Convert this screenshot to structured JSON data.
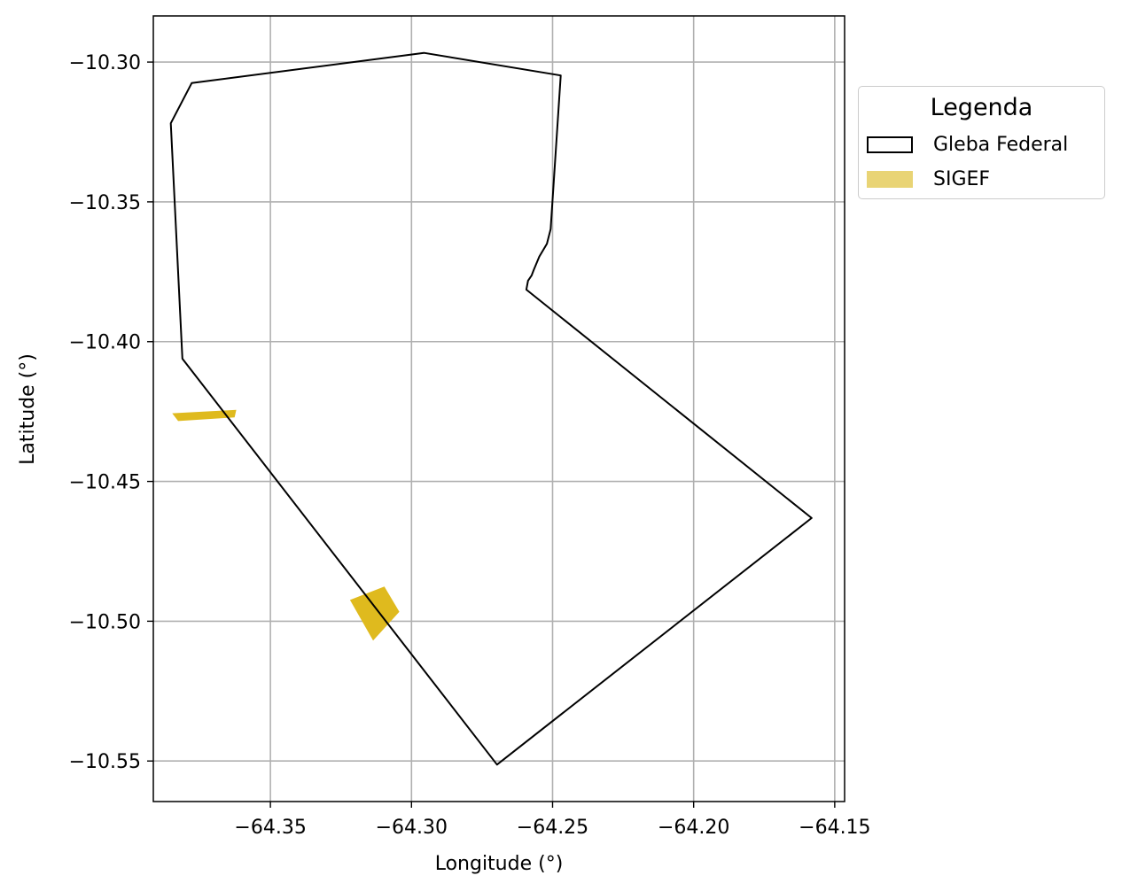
{
  "map": {
    "xlabel": "Longitude (°)",
    "ylabel": "Latitude (°)",
    "xlim": [
      -64.3915,
      -64.1465
    ],
    "ylim": [
      -10.5645,
      -10.2835
    ],
    "x_ticks": [
      {
        "value": -64.35,
        "label": "−64.35"
      },
      {
        "value": -64.3,
        "label": "−64.30"
      },
      {
        "value": -64.25,
        "label": "−64.25"
      },
      {
        "value": -64.2,
        "label": "−64.20"
      },
      {
        "value": -64.15,
        "label": "−64.15"
      }
    ],
    "y_ticks": [
      {
        "value": -10.3,
        "label": "−10.30"
      },
      {
        "value": -10.35,
        "label": "−10.35"
      },
      {
        "value": -10.4,
        "label": "−10.40"
      },
      {
        "value": -10.45,
        "label": "−10.45"
      },
      {
        "value": -10.5,
        "label": "−10.50"
      },
      {
        "value": -10.55,
        "label": "−10.55"
      }
    ],
    "grid": true,
    "colors": {
      "gleba_edge": "#000000",
      "sigef_fill": "#dfba1e",
      "sigef_legend_fill": "#e9d475",
      "grid": "#b0b0b0"
    },
    "layers": [
      {
        "name": "Gleba Federal",
        "type": "polygon-outline",
        "coordinates": [
          [
            -64.2956,
            -10.2967
          ],
          [
            -64.2471,
            -10.3048
          ],
          [
            -64.2507,
            -10.3598
          ],
          [
            -64.252,
            -10.365
          ],
          [
            -64.2547,
            -10.3696
          ],
          [
            -64.2567,
            -10.3744
          ],
          [
            -64.2574,
            -10.3763
          ],
          [
            -64.2587,
            -10.3782
          ],
          [
            -64.2593,
            -10.3814
          ],
          [
            -64.1582,
            -10.4631
          ],
          [
            -64.2697,
            -10.5513
          ],
          [
            -64.3812,
            -10.4061
          ],
          [
            -64.3853,
            -10.3219
          ],
          [
            -64.3779,
            -10.3075
          ],
          [
            -64.2956,
            -10.2967
          ]
        ]
      },
      {
        "name": "SIGEF",
        "type": "polygon-fill",
        "polygons": [
          [
            [
              -64.3848,
              -10.4256
            ],
            [
              -64.3621,
              -10.4244
            ],
            [
              -64.3627,
              -10.4271
            ],
            [
              -64.3827,
              -10.4284
            ]
          ],
          [
            [
              -64.3218,
              -10.4924
            ],
            [
              -64.3096,
              -10.4876
            ],
            [
              -64.3043,
              -10.4966
            ],
            [
              -64.3136,
              -10.5069
            ]
          ]
        ]
      }
    ],
    "legend": {
      "title": "Legenda",
      "position": "upper-right-outside",
      "items": [
        {
          "label": "Gleba Federal",
          "style": "outline"
        },
        {
          "label": "SIGEF",
          "style": "fill"
        }
      ]
    }
  }
}
